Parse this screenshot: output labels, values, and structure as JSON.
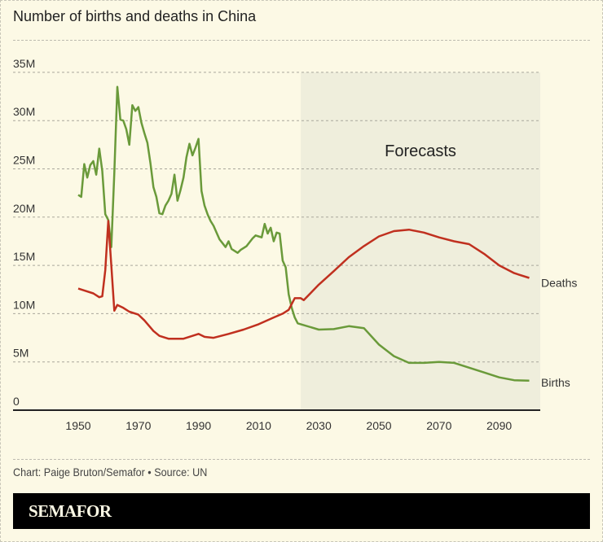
{
  "header": {
    "title": "Number of births and deaths in China"
  },
  "footer": {
    "credit": "Chart: Paige Bruton/Semafor • Source: UN",
    "logo": "SEMAFOR"
  },
  "colors": {
    "births": "#6a9a3a",
    "deaths": "#c0301f",
    "forecast_bg": "#efeedc",
    "background": "#fcf9e5"
  },
  "chart_data": {
    "type": "line",
    "title": "Number of births and deaths in China",
    "xlabel": "",
    "ylabel": "",
    "xlim": [
      1940,
      2105
    ],
    "ylim": [
      0,
      35
    ],
    "x_ticks": [
      1950,
      1970,
      1990,
      2010,
      2030,
      2050,
      2070,
      2090
    ],
    "y_ticks": [
      {
        "value": 0,
        "label": "0"
      },
      {
        "value": 5,
        "label": "5M"
      },
      {
        "value": 10,
        "label": "10M"
      },
      {
        "value": 15,
        "label": "15M"
      },
      {
        "value": 20,
        "label": "20M"
      },
      {
        "value": 25,
        "label": "25M"
      },
      {
        "value": 30,
        "label": "30M"
      },
      {
        "value": 35,
        "label": "35M"
      }
    ],
    "grid": true,
    "annotation": {
      "label": "Forecasts",
      "from_year": 2024,
      "to_year": 2100
    },
    "series": [
      {
        "name": "Births",
        "unit": "millions",
        "points": [
          [
            1950,
            22.3
          ],
          [
            1951,
            22.1
          ],
          [
            1952,
            25.5
          ],
          [
            1953,
            24.1
          ],
          [
            1954,
            25.4
          ],
          [
            1955,
            25.8
          ],
          [
            1956,
            24.4
          ],
          [
            1957,
            27.1
          ],
          [
            1958,
            24.8
          ],
          [
            1959,
            20.3
          ],
          [
            1960,
            19.7
          ],
          [
            1961,
            16.9
          ],
          [
            1962,
            24.6
          ],
          [
            1963,
            33.5
          ],
          [
            1964,
            30.1
          ],
          [
            1965,
            30.0
          ],
          [
            1966,
            29.1
          ],
          [
            1967,
            27.5
          ],
          [
            1968,
            31.6
          ],
          [
            1969,
            31.0
          ],
          [
            1970,
            31.4
          ],
          [
            1971,
            29.8
          ],
          [
            1972,
            28.7
          ],
          [
            1973,
            27.7
          ],
          [
            1974,
            25.6
          ],
          [
            1975,
            23.1
          ],
          [
            1976,
            22.1
          ],
          [
            1977,
            20.4
          ],
          [
            1978,
            20.3
          ],
          [
            1979,
            21.2
          ],
          [
            1980,
            21.7
          ],
          [
            1981,
            22.4
          ],
          [
            1982,
            24.4
          ],
          [
            1983,
            21.7
          ],
          [
            1984,
            22.8
          ],
          [
            1985,
            24.1
          ],
          [
            1986,
            26.2
          ],
          [
            1987,
            27.6
          ],
          [
            1988,
            26.4
          ],
          [
            1989,
            27.2
          ],
          [
            1990,
            28.1
          ],
          [
            1991,
            22.7
          ],
          [
            1992,
            21.2
          ],
          [
            1993,
            20.3
          ],
          [
            1994,
            19.6
          ],
          [
            1995,
            19.1
          ],
          [
            1996,
            18.4
          ],
          [
            1997,
            17.7
          ],
          [
            1998,
            17.3
          ],
          [
            1999,
            16.9
          ],
          [
            2000,
            17.5
          ],
          [
            2001,
            16.7
          ],
          [
            2002,
            16.5
          ],
          [
            2003,
            16.3
          ],
          [
            2004,
            16.6
          ],
          [
            2005,
            16.8
          ],
          [
            2006,
            17.0
          ],
          [
            2007,
            17.4
          ],
          [
            2008,
            17.8
          ],
          [
            2009,
            18.1
          ],
          [
            2010,
            18.0
          ],
          [
            2011,
            17.9
          ],
          [
            2012,
            19.3
          ],
          [
            2013,
            18.3
          ],
          [
            2014,
            18.9
          ],
          [
            2015,
            17.5
          ],
          [
            2016,
            18.4
          ],
          [
            2017,
            18.3
          ],
          [
            2018,
            15.5
          ],
          [
            2019,
            14.8
          ],
          [
            2020,
            12.0
          ],
          [
            2021,
            10.6
          ],
          [
            2022,
            9.6
          ],
          [
            2023,
            9.0
          ],
          [
            2024,
            8.9
          ],
          [
            2030,
            8.35
          ],
          [
            2035,
            8.4
          ],
          [
            2040,
            8.7
          ],
          [
            2045,
            8.5
          ],
          [
            2050,
            6.8
          ],
          [
            2055,
            5.6
          ],
          [
            2060,
            4.9
          ],
          [
            2065,
            4.9
          ],
          [
            2070,
            5.0
          ],
          [
            2075,
            4.9
          ],
          [
            2080,
            4.4
          ],
          [
            2085,
            3.9
          ],
          [
            2090,
            3.4
          ],
          [
            2095,
            3.1
          ],
          [
            2100,
            3.05
          ]
        ]
      },
      {
        "name": "Deaths",
        "unit": "millions",
        "points": [
          [
            1950,
            12.6
          ],
          [
            1952,
            12.4
          ],
          [
            1955,
            12.1
          ],
          [
            1957,
            11.7
          ],
          [
            1958,
            11.8
          ],
          [
            1959,
            14.5
          ],
          [
            1960,
            19.6
          ],
          [
            1961,
            15.0
          ],
          [
            1962,
            10.3
          ],
          [
            1963,
            10.9
          ],
          [
            1965,
            10.6
          ],
          [
            1967,
            10.2
          ],
          [
            1970,
            9.9
          ],
          [
            1972,
            9.3
          ],
          [
            1975,
            8.2
          ],
          [
            1977,
            7.7
          ],
          [
            1980,
            7.4
          ],
          [
            1985,
            7.4
          ],
          [
            1988,
            7.7
          ],
          [
            1990,
            7.9
          ],
          [
            1992,
            7.6
          ],
          [
            1995,
            7.5
          ],
          [
            2000,
            7.9
          ],
          [
            2005,
            8.35
          ],
          [
            2010,
            8.9
          ],
          [
            2015,
            9.6
          ],
          [
            2018,
            10.0
          ],
          [
            2020,
            10.4
          ],
          [
            2022,
            11.6
          ],
          [
            2024,
            11.6
          ],
          [
            2025,
            11.4
          ],
          [
            2030,
            13.0
          ],
          [
            2035,
            14.4
          ],
          [
            2040,
            15.85
          ],
          [
            2045,
            17.0
          ],
          [
            2050,
            18.0
          ],
          [
            2055,
            18.55
          ],
          [
            2060,
            18.7
          ],
          [
            2065,
            18.4
          ],
          [
            2070,
            17.9
          ],
          [
            2075,
            17.5
          ],
          [
            2080,
            17.2
          ],
          [
            2085,
            16.2
          ],
          [
            2090,
            15.0
          ],
          [
            2095,
            14.2
          ],
          [
            2100,
            13.7
          ]
        ]
      }
    ]
  }
}
